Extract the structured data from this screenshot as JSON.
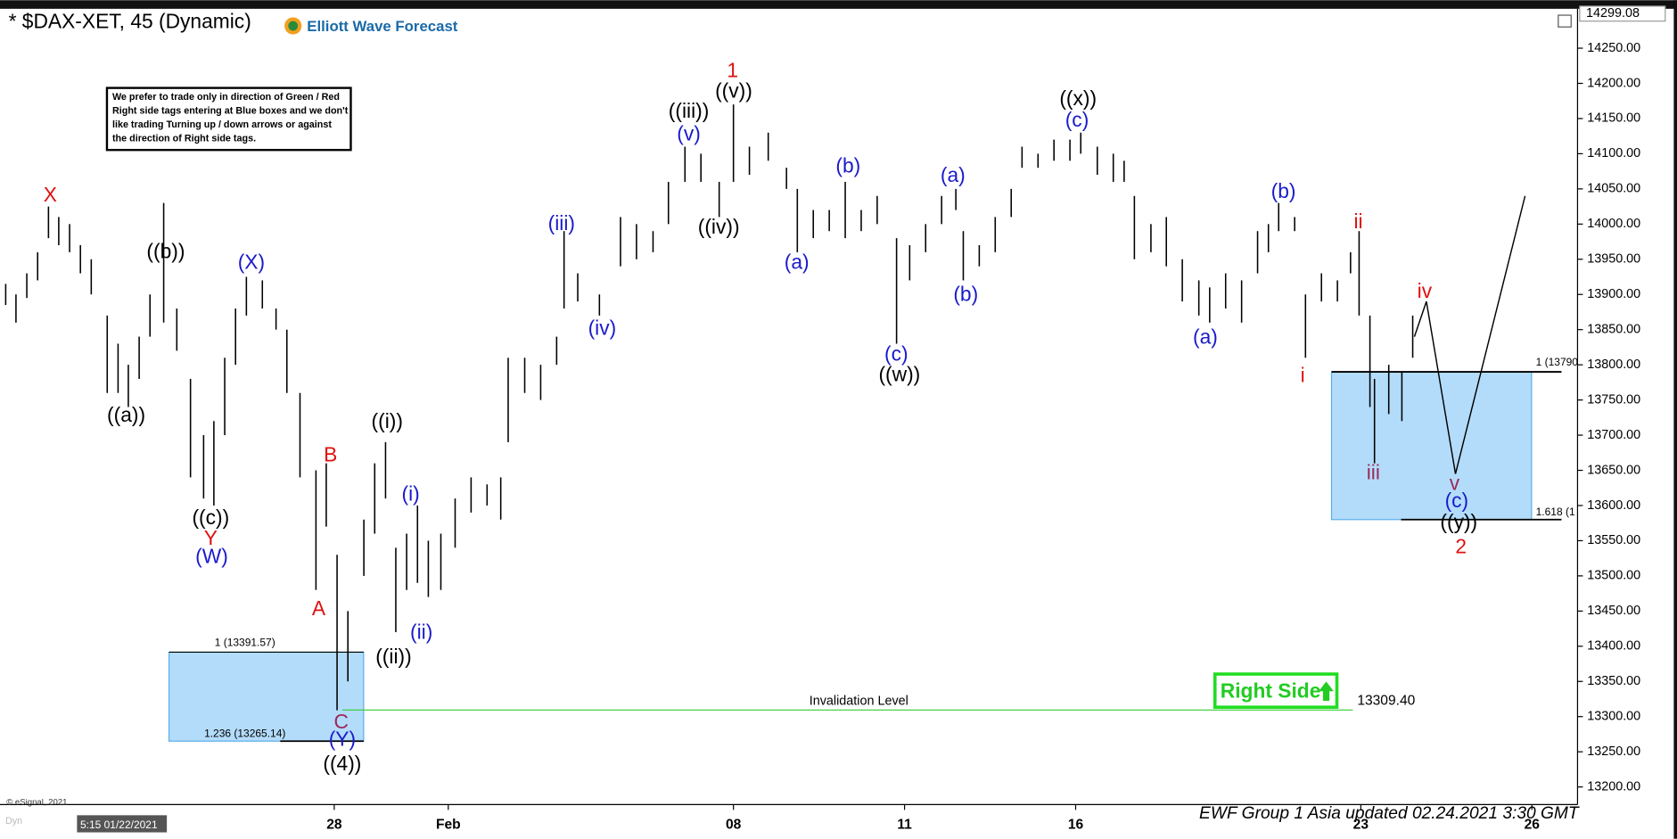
{
  "chart_data": {
    "type": "ohlc",
    "title": "* $DAX-XET, 45 (Dynamic)",
    "brand": "Elliott Wave Forecast",
    "notice": [
      "We prefer to trade only in direction of Green / Red",
      "Right side tags entering at Blue boxes and we don't",
      "like trading Turning up / down arrows or against",
      "the direction of Right side tags."
    ],
    "footer": "EWF Group 1 Asia updated 02.24.2021 3:30 GMT",
    "copyright": "© eSignal, 2021",
    "start_label": "5:15 01/22/2021",
    "mode_label": "Dyn",
    "last_price": {
      "value": 14299.08,
      "label": "14299.08"
    },
    "invalidation": {
      "label": "Invalidation Level",
      "value": 13309.4,
      "value_label": "13309.40",
      "color": "#33cc33"
    },
    "right_side": "Right Side",
    "boxes": [
      {
        "top": 13391.57,
        "bottom": 13265.14,
        "top_label": "1 (13391.57)",
        "bottom_label": "1.236 (13265.14)"
      },
      {
        "top": 13790,
        "bottom": 13580,
        "top_label": "1 (13790",
        "bottom_label": "1.618 (1"
      }
    ],
    "box_color": "#b3dcfa",
    "bar_color": "#000000",
    "xlim": [
      -1.86,
      25.8
    ],
    "ylim": [
      13175,
      14306
    ],
    "xticks": [
      {
        "value": 4,
        "label": "28"
      },
      {
        "value": 6,
        "label": "Feb"
      },
      {
        "value": 11,
        "label": "08"
      },
      {
        "value": 14,
        "label": "11"
      },
      {
        "value": 17,
        "label": "16"
      },
      {
        "value": 22,
        "label": "23"
      },
      {
        "value": 25,
        "label": "26"
      }
    ],
    "yticks": [
      {
        "value": 13200,
        "label": "13200.00"
      },
      {
        "value": 13250,
        "label": "13250.00"
      },
      {
        "value": 13300,
        "label": "13300.00"
      },
      {
        "value": 13350,
        "label": "13350.00"
      },
      {
        "value": 13400,
        "label": "13400.00"
      },
      {
        "value": 13450,
        "label": "13450.00"
      },
      {
        "value": 13500,
        "label": "13500.00"
      },
      {
        "value": 13550,
        "label": "13550.00"
      },
      {
        "value": 13600,
        "label": "13600.00"
      },
      {
        "value": 13650,
        "label": "13650.00"
      },
      {
        "value": 13700,
        "label": "13700.00"
      },
      {
        "value": 13750,
        "label": "13750.00"
      },
      {
        "value": 13800,
        "label": "13800.00"
      },
      {
        "value": 13850,
        "label": "13850.00"
      },
      {
        "value": 13900,
        "label": "13900.00"
      },
      {
        "value": 13950,
        "label": "13950.00"
      },
      {
        "value": 14000,
        "label": "14000.00"
      },
      {
        "value": 14050,
        "label": "14050.00"
      },
      {
        "value": 14100,
        "label": "14100.00"
      },
      {
        "value": 14150,
        "label": "14150.00"
      },
      {
        "value": 14200,
        "label": "14200.00"
      },
      {
        "value": 14250,
        "label": "14250.00"
      }
    ],
    "x": [
      -1.76,
      -1.58,
      -1.39,
      -1.2,
      -1.01,
      -0.83,
      -0.64,
      -0.45,
      -0.26,
      0.02,
      0.21,
      0.39,
      0.58,
      0.77,
      1.01,
      1.24,
      1.48,
      1.71,
      1.89,
      2.08,
      2.27,
      2.46,
      2.74,
      2.98,
      3.17,
      3.4,
      3.68,
      3.86,
      4.05,
      4.24,
      4.52,
      4.71,
      4.9,
      5.08,
      5.27,
      5.46,
      5.65,
      5.87,
      6.12,
      6.4,
      6.68,
      6.92,
      7.05,
      7.34,
      7.62,
      7.9,
      8.03,
      8.27,
      8.65,
      9.02,
      9.3,
      9.59,
      9.86,
      10.15,
      10.43,
      10.75,
      11.0,
      11.28,
      11.61,
      11.93,
      12.12,
      12.4,
      12.68,
      12.96,
      13.24,
      13.52,
      13.86,
      14.09,
      14.37,
      14.65,
      14.9,
      15.03,
      15.31,
      15.59,
      15.87,
      16.06,
      16.34,
      16.62,
      16.9,
      17.09,
      17.38,
      17.66,
      17.85,
      18.03,
      18.32,
      18.59,
      18.87,
      19.16,
      19.35,
      19.63,
      19.91,
      20.19,
      20.38,
      20.56,
      20.84,
      21.03,
      21.31,
      21.59,
      21.82,
      21.97,
      22.16,
      22.24,
      22.49,
      22.72,
      22.91
    ],
    "high": [
      13915,
      13900,
      13930,
      13960,
      14025,
      14010,
      14000,
      13970,
      13950,
      13870,
      13830,
      13800,
      13840,
      13900,
      14030,
      13880,
      13780,
      13700,
      13720,
      13810,
      13880,
      13925,
      13920,
      13880,
      13850,
      13760,
      13650,
      13660,
      13530,
      13450,
      13580,
      13660,
      13690,
      13540,
      13560,
      13600,
      13550,
      13560,
      13610,
      13640,
      13630,
      13640,
      13810,
      13810,
      13800,
      13840,
      13990,
      13930,
      13900,
      14010,
      14000,
      13990,
      14060,
      14110,
      14100,
      14060,
      14170,
      14110,
      14130,
      14080,
      14050,
      14020,
      14020,
      14060,
      14020,
      14040,
      13980,
      13970,
      14000,
      14040,
      14050,
      13990,
      13970,
      14010,
      14050,
      14110,
      14100,
      14120,
      14120,
      14130,
      14110,
      14100,
      14090,
      14040,
      14000,
      14010,
      13950,
      13920,
      13910,
      13930,
      13920,
      13990,
      14000,
      14030,
      14010,
      13900,
      13930,
      13920,
      13960,
      13990,
      13870,
      13780,
      13800,
      13790,
      13870
    ],
    "low": [
      13885,
      13860,
      13895,
      13920,
      13980,
      13970,
      13960,
      13930,
      13900,
      13760,
      13760,
      13740,
      13780,
      13840,
      13860,
      13820,
      13640,
      13610,
      13600,
      13700,
      13800,
      13870,
      13880,
      13850,
      13760,
      13640,
      13480,
      13570,
      13309,
      13350,
      13500,
      13560,
      13610,
      13420,
      13480,
      13490,
      13470,
      13480,
      13540,
      13590,
      13600,
      13580,
      13690,
      13760,
      13750,
      13800,
      13880,
      13890,
      13870,
      13940,
      13950,
      13960,
      14000,
      14060,
      14060,
      14010,
      14060,
      14070,
      14090,
      14050,
      13960,
      13980,
      13990,
      13980,
      13990,
      14000,
      13830,
      13920,
      13960,
      14000,
      14020,
      13920,
      13940,
      13960,
      14010,
      14080,
      14080,
      14090,
      14090,
      14100,
      14070,
      14060,
      14060,
      13950,
      13960,
      13940,
      13890,
      13870,
      13860,
      13880,
      13860,
      13930,
      13960,
      13990,
      13990,
      13810,
      13890,
      13890,
      13930,
      13870,
      13740,
      13660,
      13730,
      13720,
      13810
    ],
    "projection": {
      "x": [
        22.94,
        23.15,
        23.66,
        24.88
      ],
      "values": [
        13840,
        13890,
        13645,
        14040
      ]
    },
    "annotations": [
      {
        "text": "X",
        "color": "#e01010"
      },
      {
        "text": "((b))",
        "color": "#000000"
      },
      {
        "text": "((a))",
        "color": "#000000"
      },
      {
        "text": "(X)",
        "color": "#1a1acc"
      },
      {
        "text": "((c))",
        "color": "#000000"
      },
      {
        "text": "Y",
        "color": "#e01010"
      },
      {
        "text": "(W)",
        "color": "#1a1acc"
      },
      {
        "text": "B",
        "color": "#e01010"
      },
      {
        "text": "A",
        "color": "#e01010"
      },
      {
        "text": "C",
        "color": "#9b2a5a"
      },
      {
        "text": "(Y)",
        "color": "#1a1acc"
      },
      {
        "text": "((4))",
        "color": "#000000"
      },
      {
        "text": "((i))",
        "color": "#000000"
      },
      {
        "text": "((ii))",
        "color": "#000000"
      },
      {
        "text": "(i)",
        "color": "#1a1acc"
      },
      {
        "text": "(ii)",
        "color": "#1a1acc"
      },
      {
        "text": "(iii)",
        "color": "#1a1acc"
      },
      {
        "text": "(iv)",
        "color": "#1a1acc"
      },
      {
        "text": "((iii))",
        "color": "#000000"
      },
      {
        "text": "(v)",
        "color": "#1a1acc"
      },
      {
        "text": "1",
        "color": "#e01010"
      },
      {
        "text": "((v))",
        "color": "#000000"
      },
      {
        "text": "((iv))",
        "color": "#000000"
      },
      {
        "text": "(a)",
        "color": "#1a1acc"
      },
      {
        "text": "(b)",
        "color": "#1a1acc"
      },
      {
        "text": "(c)",
        "color": "#1a1acc"
      },
      {
        "text": "((w))",
        "color": "#000000"
      },
      {
        "text": "(a)",
        "color": "#1a1acc"
      },
      {
        "text": "(b)",
        "color": "#1a1acc"
      },
      {
        "text": "((x))",
        "color": "#000000"
      },
      {
        "text": "(c)",
        "color": "#1a1acc"
      },
      {
        "text": "(a)",
        "color": "#1a1acc"
      },
      {
        "text": "(b)",
        "color": "#1a1acc"
      },
      {
        "text": "i",
        "color": "#e01010"
      },
      {
        "text": "ii",
        "color": "#e01010"
      },
      {
        "text": "iii",
        "color": "#9b2a5a"
      },
      {
        "text": "iv",
        "color": "#e01010"
      },
      {
        "text": "v",
        "color": "#9b2a5a"
      },
      {
        "text": "(c)",
        "color": "#1a1acc"
      },
      {
        "text": "((y))",
        "color": "#000000"
      },
      {
        "text": "2",
        "color": "#e01010"
      }
    ]
  }
}
